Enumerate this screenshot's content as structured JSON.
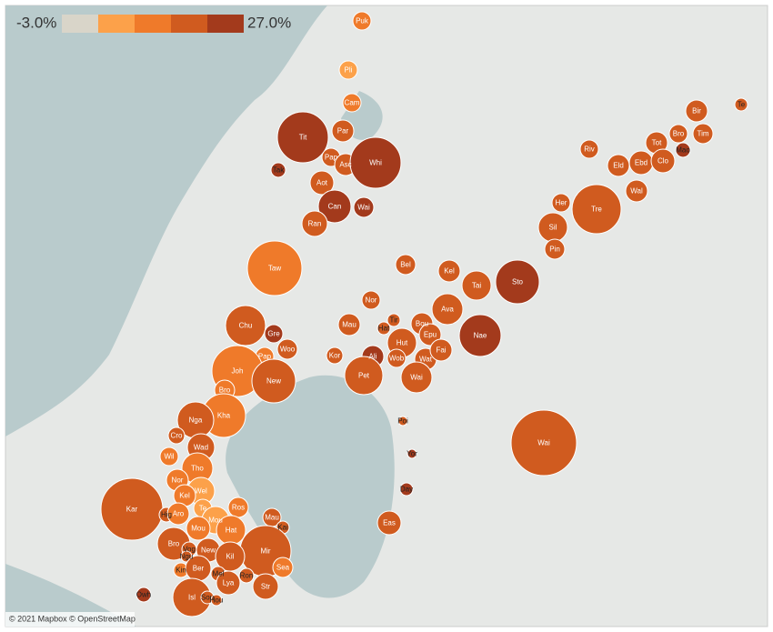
{
  "legend": {
    "min": {
      "value": -3,
      "label": "-3.0%"
    },
    "max": {
      "value": 27,
      "label": "27.0%"
    },
    "colors": [
      "#d9d5c9",
      "#fca14a",
      "#ef7a2a",
      "#d05b1f",
      "#a33a1c"
    ]
  },
  "attribution": "© 2021 Mapbox © OpenStreetMap",
  "points": [
    {
      "label": "Puk",
      "value": 12
    },
    {
      "label": "Pli",
      "value": 6
    },
    {
      "label": "Cam",
      "value": 12
    },
    {
      "label": "Tit",
      "value": 24
    },
    {
      "label": "Par",
      "value": 18
    },
    {
      "label": "Pap",
      "value": 18
    },
    {
      "label": "Asc",
      "value": 18
    },
    {
      "label": "Whi",
      "value": 24
    },
    {
      "label": "Tak",
      "value": 24
    },
    {
      "label": "Aot",
      "value": 18
    },
    {
      "label": "Can",
      "value": 24
    },
    {
      "label": "Wai",
      "value": 24
    },
    {
      "label": "Ran",
      "value": 18
    },
    {
      "label": "Taw",
      "value": 12
    },
    {
      "label": "Bel",
      "value": 18
    },
    {
      "label": "Kel",
      "value": 18
    },
    {
      "label": "Tai",
      "value": 18
    },
    {
      "label": "Sto",
      "value": 24
    },
    {
      "label": "Nor",
      "value": 18
    },
    {
      "label": "Ava",
      "value": 18
    },
    {
      "label": "Chu",
      "value": 18
    },
    {
      "label": "Gre",
      "value": 24
    },
    {
      "label": "Woo",
      "value": 18
    },
    {
      "label": "Pap",
      "value": 12
    },
    {
      "label": "Mau",
      "value": 18
    },
    {
      "label": "Tir",
      "value": 18
    },
    {
      "label": "Hat",
      "value": 18
    },
    {
      "label": "Bou",
      "value": 18
    },
    {
      "label": "Epu",
      "value": 18
    },
    {
      "label": "Nae",
      "value": 24
    },
    {
      "label": "Hut",
      "value": 18
    },
    {
      "label": "Kor",
      "value": 18
    },
    {
      "label": "Ali",
      "value": 24
    },
    {
      "label": "Wob",
      "value": 18
    },
    {
      "label": "Wat",
      "value": 18
    },
    {
      "label": "Fai",
      "value": 18
    },
    {
      "label": "Joh",
      "value": 12
    },
    {
      "label": "New",
      "value": 18
    },
    {
      "label": "Bro",
      "value": 12
    },
    {
      "label": "Pet",
      "value": 18
    },
    {
      "label": "Wai",
      "value": 18
    },
    {
      "label": "Kha",
      "value": 12
    },
    {
      "label": "Poi",
      "value": 18
    },
    {
      "label": "Wai",
      "value": 18
    },
    {
      "label": "Nga",
      "value": 18
    },
    {
      "label": "Cro",
      "value": 18
    },
    {
      "label": "Wad",
      "value": 18
    },
    {
      "label": "Wil",
      "value": 12
    },
    {
      "label": "Tho",
      "value": 12
    },
    {
      "label": "Yor",
      "value": 24
    },
    {
      "label": "Nor",
      "value": 12
    },
    {
      "label": "Wel",
      "value": 6
    },
    {
      "label": "Day",
      "value": 24
    },
    {
      "label": "Kel",
      "value": 12
    },
    {
      "label": "Kar",
      "value": 18
    },
    {
      "label": "Hig",
      "value": 18
    },
    {
      "label": "Aro",
      "value": 12
    },
    {
      "label": "Te",
      "value": 6
    },
    {
      "label": "Ros",
      "value": 12
    },
    {
      "label": "Mou",
      "value": 6
    },
    {
      "label": "Mau",
      "value": 18
    },
    {
      "label": "Eas",
      "value": 18
    },
    {
      "label": "Mou",
      "value": 12
    },
    {
      "label": "Hat",
      "value": 12
    },
    {
      "label": "Kai",
      "value": 18
    },
    {
      "label": "Bro",
      "value": 18
    },
    {
      "label": "Mir",
      "value": 18
    },
    {
      "label": "Vog",
      "value": 18
    },
    {
      "label": "Ngu",
      "value": 18
    },
    {
      "label": "New",
      "value": 18
    },
    {
      "label": "Kil",
      "value": 18
    },
    {
      "label": "Sea",
      "value": 12
    },
    {
      "label": "Kin",
      "value": 12
    },
    {
      "label": "Ber",
      "value": 18
    },
    {
      "label": "Mel",
      "value": 18
    },
    {
      "label": "Ron",
      "value": 18
    },
    {
      "label": "Lya",
      "value": 18
    },
    {
      "label": "Str",
      "value": 18
    },
    {
      "label": "Owh",
      "value": 24
    },
    {
      "label": "Isl",
      "value": 18
    },
    {
      "label": "Sou",
      "value": 18
    },
    {
      "label": "Hou",
      "value": 18
    },
    {
      "label": "Riv",
      "value": 18
    },
    {
      "label": "Tot",
      "value": 18
    },
    {
      "label": "Bro",
      "value": 18
    },
    {
      "label": "Tim",
      "value": 18
    },
    {
      "label": "Bir",
      "value": 18
    },
    {
      "label": "Te",
      "value": 18
    },
    {
      "label": "Mao",
      "value": 24
    },
    {
      "label": "Eld",
      "value": 18
    },
    {
      "label": "Ebd",
      "value": 18
    },
    {
      "label": "Clo",
      "value": 18
    },
    {
      "label": "Wal",
      "value": 18
    },
    {
      "label": "Her",
      "value": 18
    },
    {
      "label": "Tre",
      "value": 18
    },
    {
      "label": "Sil",
      "value": 18
    },
    {
      "label": "Pin",
      "value": 18
    }
  ]
}
